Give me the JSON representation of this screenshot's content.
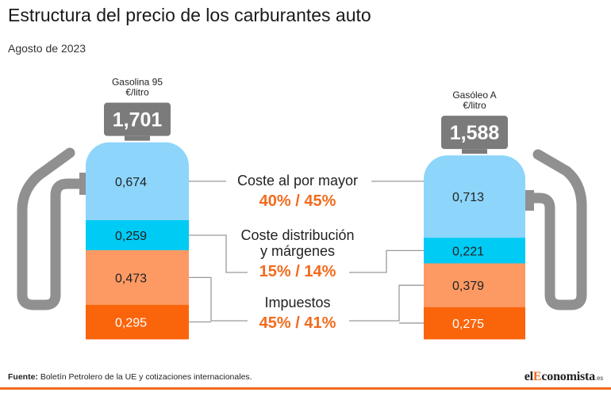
{
  "title": "Estructura del precio de los carburantes auto",
  "subtitle": "Agosto de 2023",
  "source_label": "Fuente:",
  "source_text": "Boletín Petrolero de la UE y cotizaciones internacionales.",
  "brand": {
    "prefix": "el",
    "highlight": "E",
    "rest": "conomista",
    "suffix": ".es"
  },
  "colors": {
    "wholesale": "#8dd5fb",
    "distribution": "#00cbf5",
    "taxes_a": "#fd9a63",
    "taxes_b": "#fa650c",
    "price_box": "#7b7b7b",
    "pump": "#909090",
    "accent": "#f26b1d",
    "connector": "#9a9a9a"
  },
  "chart_data": {
    "type": "bar",
    "stacked": true,
    "categories": [
      "Gasolina 95",
      "Gasóleo A"
    ],
    "unit": "€/litro",
    "totals": [
      "1,701",
      "1,588"
    ],
    "segments": [
      {
        "key": "wholesale",
        "values": [
          0.674,
          0.713
        ],
        "labels": [
          "0,674",
          "0,713"
        ]
      },
      {
        "key": "distribution",
        "values": [
          0.259,
          0.221
        ],
        "labels": [
          "0,259",
          "0,221"
        ]
      },
      {
        "key": "taxes_a",
        "values": [
          0.473,
          0.379
        ],
        "labels": [
          "0,473",
          "0,379"
        ]
      },
      {
        "key": "taxes_b",
        "values": [
          0.295,
          0.275
        ],
        "labels": [
          "0,295",
          "0,275"
        ]
      }
    ],
    "annotations": [
      {
        "key": "wholesale",
        "label": "Coste al por mayor",
        "lines": [
          "Coste al por mayor"
        ],
        "pct": "40% / 45%"
      },
      {
        "key": "distribution",
        "label": "Coste distribución y márgenes",
        "lines": [
          "Coste distribución",
          "y márgenes"
        ],
        "pct": "15% / 14%"
      },
      {
        "key": "taxes",
        "label": "Impuestos",
        "lines": [
          "Impuestos"
        ],
        "pct": "45% / 41%"
      }
    ]
  }
}
